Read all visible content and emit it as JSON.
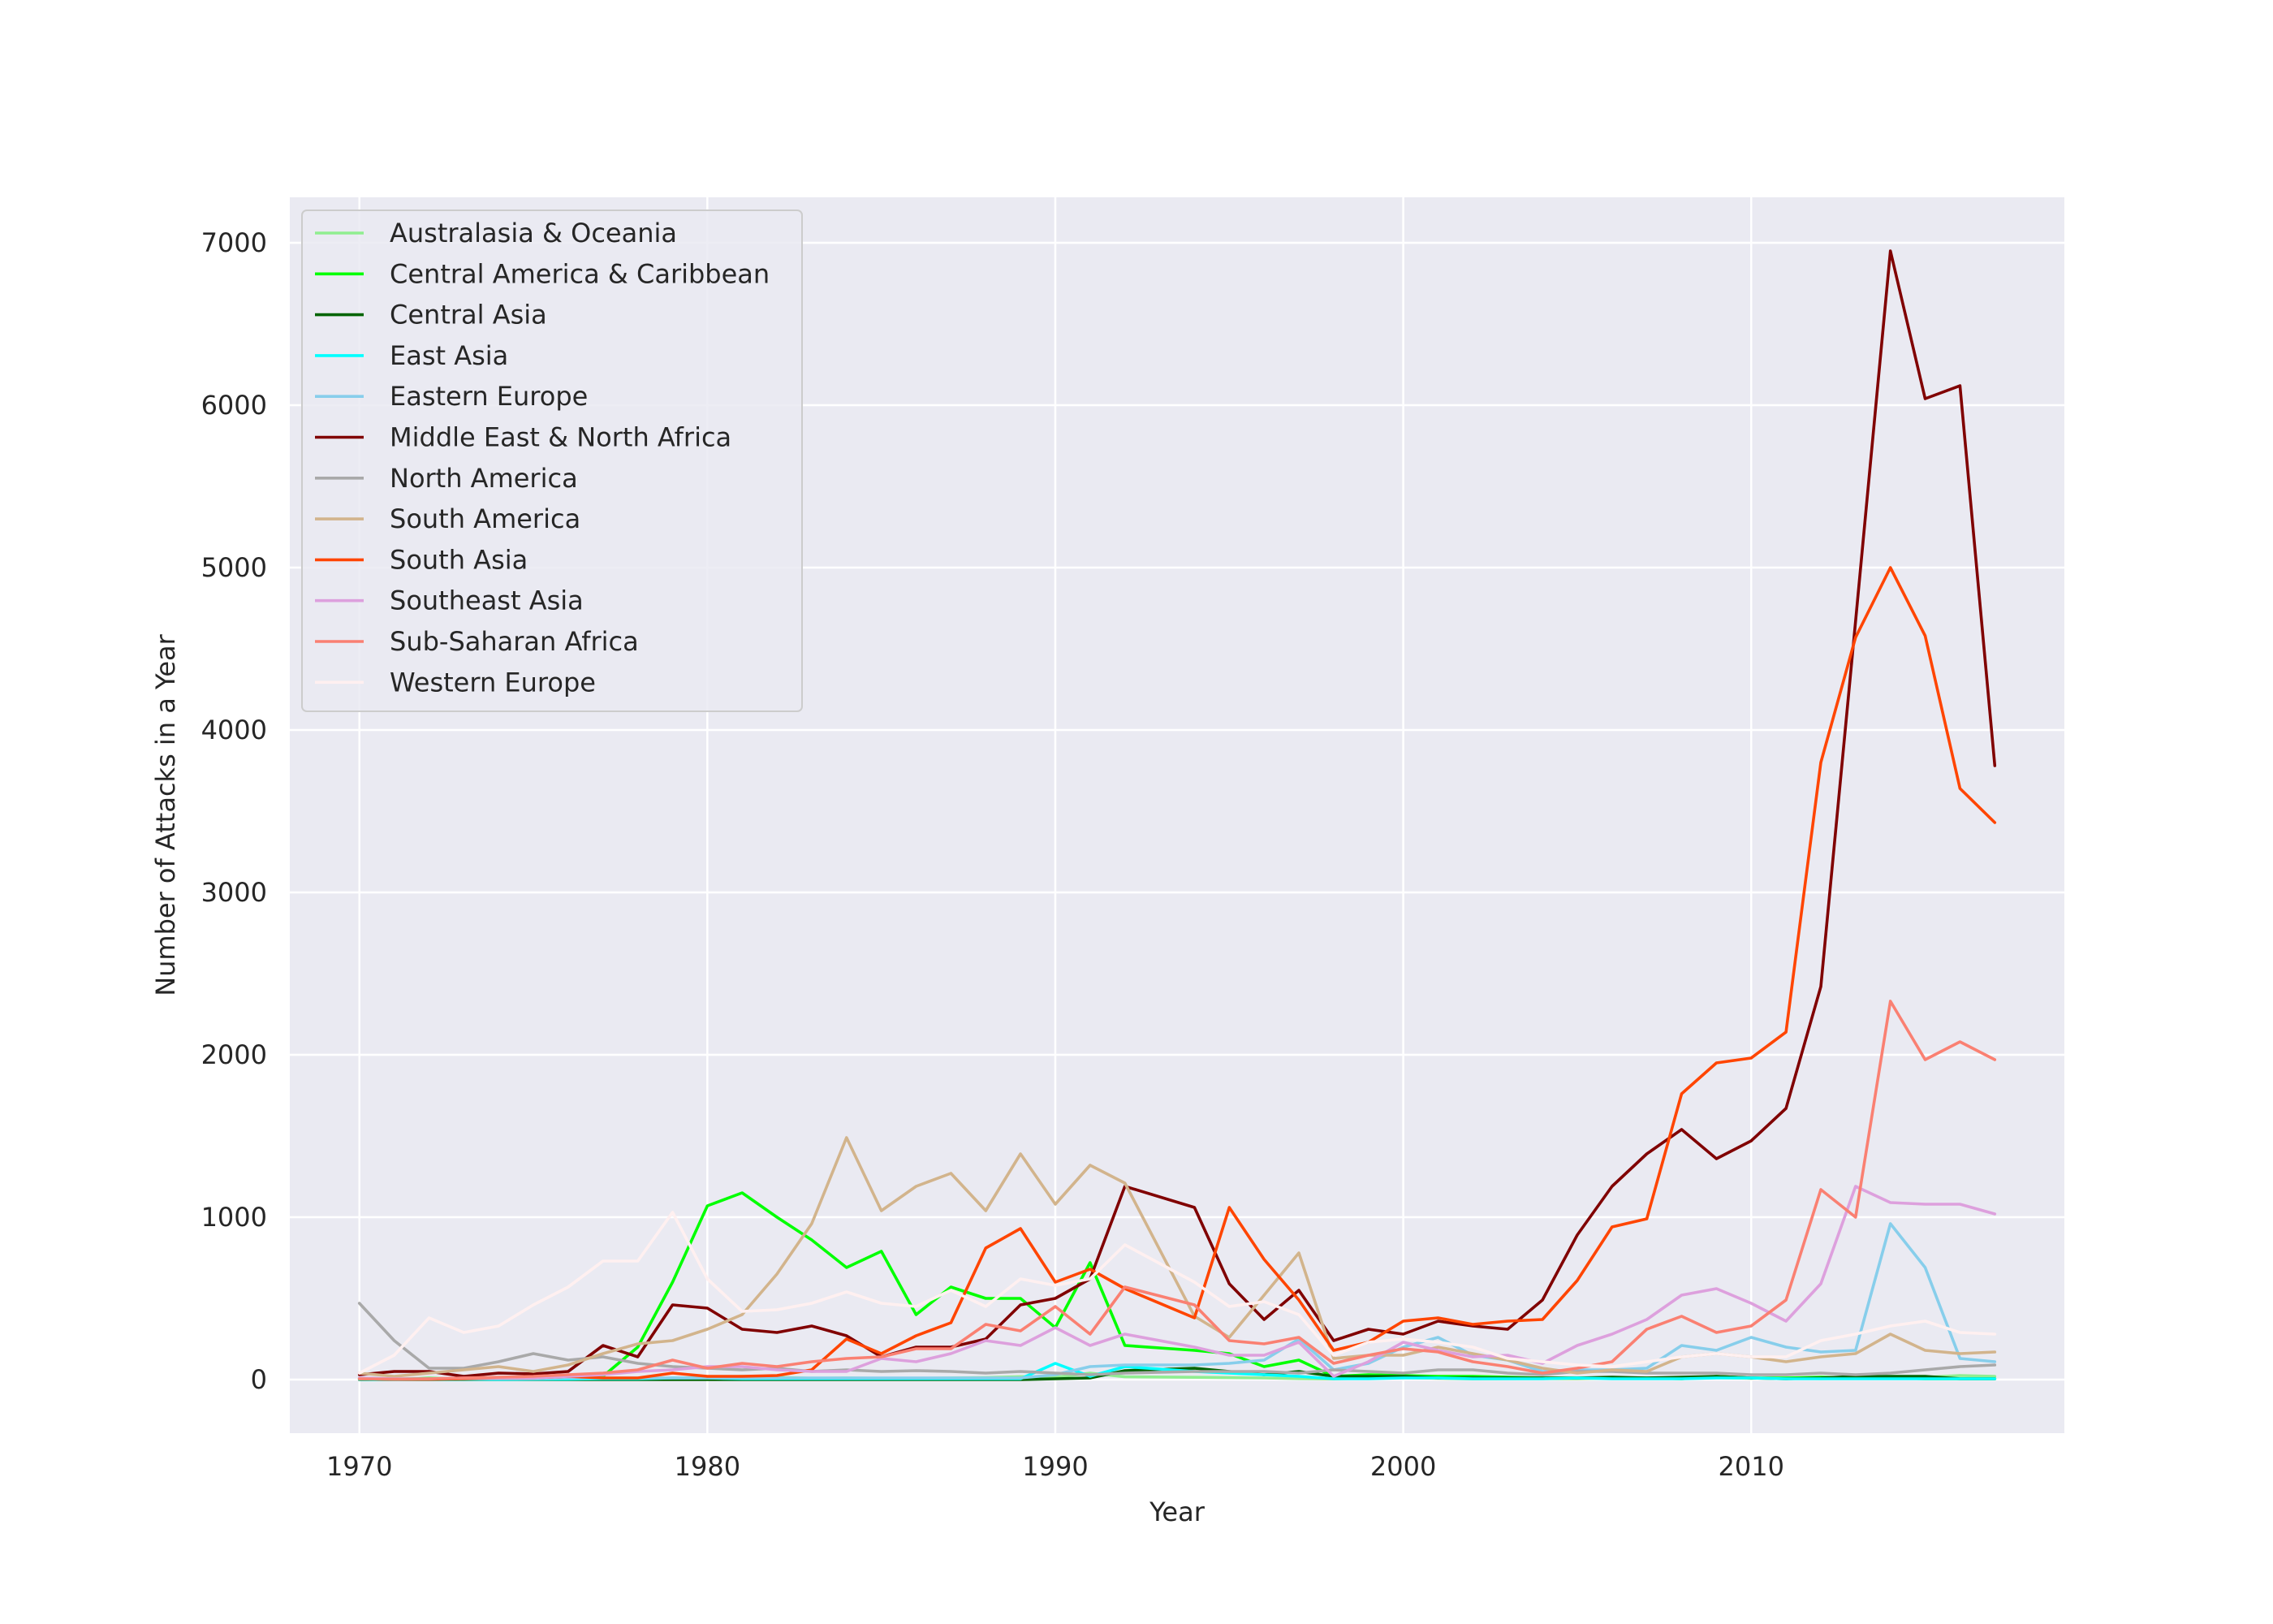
{
  "chart_data": {
    "type": "line",
    "title": "",
    "xlabel": "Year",
    "ylabel": "Number of Attacks in a Year",
    "xlim": [
      1968,
      2019
    ],
    "ylim": [
      -330,
      7280
    ],
    "xticks": [
      1970,
      1980,
      1990,
      2000,
      2010
    ],
    "yticks": [
      0,
      1000,
      2000,
      3000,
      4000,
      5000,
      6000,
      7000
    ],
    "grid": true,
    "legend_position": "top-left",
    "x": [
      1970,
      1971,
      1972,
      1973,
      1974,
      1975,
      1976,
      1977,
      1978,
      1979,
      1980,
      1981,
      1982,
      1983,
      1984,
      1985,
      1986,
      1987,
      1988,
      1989,
      1990,
      1991,
      1992,
      1994,
      1995,
      1996,
      1997,
      1998,
      1999,
      2000,
      2001,
      2002,
      2003,
      2004,
      2005,
      2006,
      2007,
      2008,
      2009,
      2010,
      2011,
      2012,
      2013,
      2014,
      2015,
      2016,
      2017
    ],
    "series": [
      {
        "name": "Australasia & Oceania",
        "color": "#90ee90",
        "values": [
          1,
          1,
          8,
          1,
          2,
          2,
          3,
          2,
          3,
          6,
          12,
          20,
          14,
          8,
          10,
          8,
          8,
          10,
          12,
          18,
          14,
          40,
          17,
          14,
          12,
          10,
          6,
          4,
          10,
          12,
          8,
          4,
          5,
          6,
          5,
          10,
          8,
          10,
          12,
          8,
          10,
          6,
          9,
          12,
          14,
          25,
          20
        ]
      },
      {
        "name": "Central America & Caribbean",
        "color": "#00ff00",
        "values": [
          7,
          2,
          8,
          4,
          6,
          8,
          20,
          20,
          200,
          600,
          1070,
          1150,
          1000,
          860,
          690,
          790,
          400,
          570,
          500,
          500,
          320,
          720,
          210,
          180,
          160,
          80,
          120,
          20,
          30,
          25,
          20,
          20,
          15,
          10,
          10,
          10,
          10,
          5,
          20,
          10,
          10,
          15,
          10,
          10,
          5,
          5,
          5
        ]
      },
      {
        "name": "Central Asia",
        "color": "#006400",
        "values": [
          0,
          0,
          0,
          0,
          0,
          0,
          0,
          0,
          0,
          0,
          0,
          0,
          0,
          0,
          0,
          0,
          0,
          0,
          0,
          0,
          5,
          10,
          55,
          70,
          50,
          30,
          50,
          20,
          20,
          20,
          10,
          10,
          10,
          10,
          10,
          15,
          10,
          15,
          20,
          10,
          5,
          10,
          20,
          20,
          20,
          5,
          5
        ]
      },
      {
        "name": "East Asia",
        "color": "#00ffff",
        "values": [
          2,
          1,
          2,
          2,
          1,
          2,
          3,
          5,
          5,
          10,
          10,
          5,
          5,
          5,
          5,
          5,
          5,
          5,
          5,
          5,
          100,
          20,
          80,
          50,
          40,
          30,
          20,
          5,
          5,
          10,
          10,
          5,
          5,
          5,
          10,
          5,
          5,
          5,
          10,
          10,
          5,
          5,
          5,
          5,
          5,
          5,
          5
        ]
      },
      {
        "name": "Eastern Europe",
        "color": "#87ceeb",
        "values": [
          10,
          5,
          5,
          5,
          5,
          5,
          10,
          10,
          10,
          10,
          10,
          10,
          10,
          10,
          10,
          10,
          10,
          10,
          10,
          10,
          30,
          80,
          90,
          90,
          100,
          120,
          250,
          60,
          100,
          200,
          260,
          150,
          120,
          50,
          60,
          60,
          70,
          210,
          180,
          260,
          200,
          170,
          180,
          960,
          690,
          130,
          110
        ]
      },
      {
        "name": "Middle East & North Africa",
        "color": "#800000",
        "values": [
          30,
          50,
          50,
          20,
          40,
          35,
          50,
          210,
          140,
          460,
          440,
          310,
          290,
          330,
          270,
          140,
          200,
          200,
          250,
          460,
          500,
          620,
          1190,
          1060,
          590,
          370,
          550,
          240,
          310,
          280,
          360,
          330,
          310,
          490,
          890,
          1190,
          1390,
          1540,
          1360,
          1470,
          1670,
          2420,
          4670,
          6950,
          6040,
          6120,
          3780
        ]
      },
      {
        "name": "North America",
        "color": "#a9a9a9",
        "values": [
          470,
          240,
          70,
          70,
          110,
          160,
          120,
          140,
          100,
          80,
          70,
          60,
          70,
          50,
          60,
          50,
          55,
          50,
          40,
          50,
          40,
          30,
          40,
          50,
          50,
          50,
          40,
          60,
          50,
          40,
          60,
          60,
          40,
          30,
          50,
          50,
          40,
          40,
          40,
          30,
          30,
          40,
          30,
          40,
          60,
          80,
          90
        ]
      },
      {
        "name": "South America",
        "color": "#d2b48c",
        "values": [
          40,
          20,
          40,
          60,
          80,
          50,
          90,
          160,
          220,
          240,
          310,
          400,
          650,
          960,
          1490,
          1040,
          1190,
          1270,
          1040,
          1390,
          1080,
          1320,
          1210,
          390,
          260,
          520,
          780,
          130,
          150,
          150,
          200,
          160,
          120,
          70,
          40,
          60,
          50,
          140,
          160,
          140,
          110,
          140,
          160,
          280,
          180,
          160,
          170
        ]
      },
      {
        "name": "South Asia",
        "color": "#ff4500",
        "values": [
          5,
          2,
          2,
          5,
          10,
          10,
          20,
          10,
          10,
          40,
          20,
          20,
          25,
          60,
          250,
          160,
          270,
          350,
          810,
          930,
          600,
          680,
          560,
          380,
          1060,
          740,
          490,
          180,
          230,
          360,
          380,
          340,
          360,
          370,
          610,
          940,
          990,
          1760,
          1950,
          1980,
          2140,
          3800,
          4570,
          5000,
          4580,
          3640,
          3430
        ]
      },
      {
        "name": "Southeast Asia",
        "color": "#dda0dd",
        "values": [
          10,
          5,
          5,
          10,
          10,
          10,
          20,
          30,
          50,
          60,
          80,
          80,
          60,
          50,
          50,
          130,
          110,
          160,
          240,
          210,
          320,
          210,
          280,
          200,
          150,
          150,
          230,
          20,
          110,
          230,
          180,
          140,
          150,
          100,
          210,
          280,
          370,
          520,
          560,
          470,
          360,
          590,
          1190,
          1090,
          1080,
          1080,
          1020
        ]
      },
      {
        "name": "Sub-Saharan Africa",
        "color": "#fa8072",
        "values": [
          5,
          2,
          5,
          10,
          15,
          20,
          30,
          40,
          60,
          120,
          70,
          100,
          80,
          110,
          130,
          140,
          190,
          190,
          340,
          300,
          450,
          280,
          570,
          460,
          240,
          220,
          260,
          100,
          150,
          190,
          170,
          110,
          80,
          40,
          70,
          110,
          310,
          390,
          290,
          330,
          490,
          1170,
          1000,
          2330,
          1970,
          2080,
          1970
        ]
      },
      {
        "name": "Western Europe",
        "color": "#fff0f0",
        "values": [
          40,
          150,
          380,
          290,
          330,
          460,
          570,
          730,
          730,
          1030,
          620,
          420,
          430,
          470,
          540,
          470,
          450,
          550,
          450,
          620,
          580,
          620,
          830,
          600,
          450,
          480,
          400,
          150,
          230,
          250,
          230,
          200,
          130,
          110,
          90,
          80,
          110,
          140,
          160,
          140,
          140,
          240,
          280,
          330,
          360,
          290,
          280
        ]
      }
    ]
  }
}
